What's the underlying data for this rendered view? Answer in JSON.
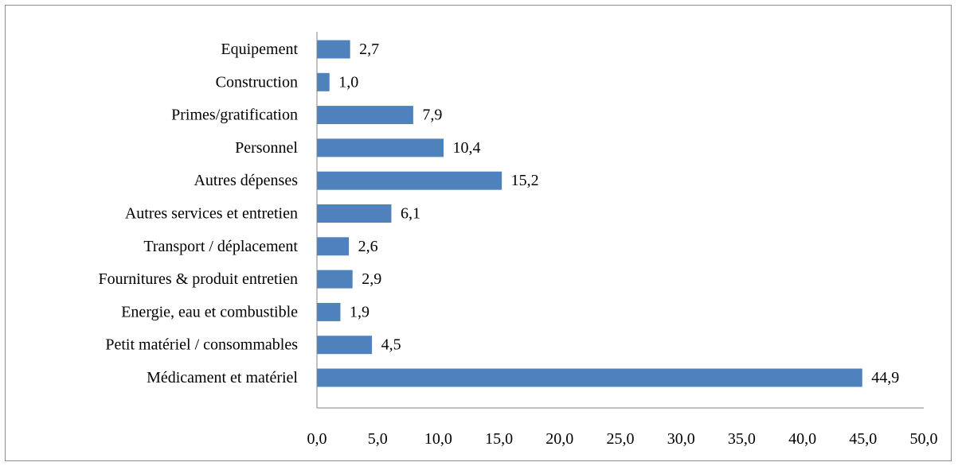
{
  "chart_data": {
    "type": "bar",
    "orientation": "horizontal",
    "title": "",
    "xlabel": "",
    "ylabel": "",
    "categories": [
      "Equipement",
      "Construction",
      "Primes/gratification",
      "Personnel",
      "Autres dépenses",
      "Autres services et entretien",
      "Transport / déplacement",
      "Fournitures & produit entretien",
      "Energie, eau et combustible",
      "Petit matériel / consommables",
      "Médicament et matériel"
    ],
    "values": [
      2.7,
      1.0,
      7.9,
      10.4,
      15.2,
      6.1,
      2.6,
      2.9,
      1.9,
      4.5,
      44.9
    ],
    "value_labels": [
      "2,7",
      "1,0",
      "7,9",
      "10,4",
      "15,2",
      "6,1",
      "2,6",
      "2,9",
      "1,9",
      "4,5",
      "44,9"
    ],
    "xlim": [
      0,
      50
    ],
    "x_ticks": [
      "0,0",
      "5,0",
      "10,0",
      "15,0",
      "20,0",
      "25,0",
      "30,0",
      "35,0",
      "40,0",
      "45,0",
      "50,0"
    ],
    "grid": false,
    "legend": "none",
    "bar_color": "#4f81bd",
    "axis_color": "#868686"
  }
}
